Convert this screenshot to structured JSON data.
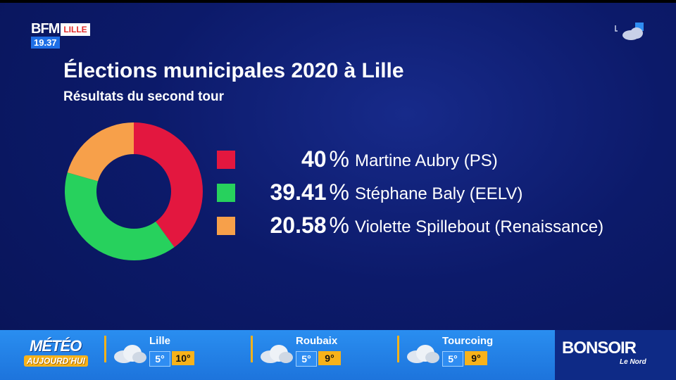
{
  "channel": {
    "name": "BFM",
    "city": "LILLE",
    "time": "19.37"
  },
  "title": "Élections municipales 2020 à Lille",
  "subtitle": "Résultats du second tour",
  "chart_data": {
    "type": "pie",
    "title": "Élections municipales 2020 à Lille",
    "subtitle": "Résultats du second tour",
    "categories": [
      "Martine Aubry (PS)",
      "Stéphane Baly (EELV)",
      "Violette Spillebout (Renaissance)"
    ],
    "values": [
      40,
      39.41,
      20.58
    ],
    "value_labels": [
      "40",
      "39.41",
      "20.58"
    ],
    "unit": "%",
    "colors": [
      "#e3173f",
      "#27d15d",
      "#f7a04a"
    ],
    "donut": true,
    "legend": "right"
  },
  "weather": {
    "title": "MÉTÉO",
    "subtitle": "AUJOURD'HUI",
    "cities": [
      {
        "name": "Lille",
        "min": "5°",
        "max": "10°",
        "icon": "cloud-icon"
      },
      {
        "name": "Roubaix",
        "min": "5°",
        "max": "9°",
        "icon": "cloud-icon"
      },
      {
        "name": "Tourcoing",
        "min": "5°",
        "max": "9°",
        "icon": "cloud-icon"
      }
    ]
  },
  "program": {
    "title": "BONSOIR",
    "subtitle": "Le Nord"
  },
  "colors": {
    "background": "#0c1a6a",
    "ticker": "#1d74dc",
    "accent": "#f7b21a"
  }
}
